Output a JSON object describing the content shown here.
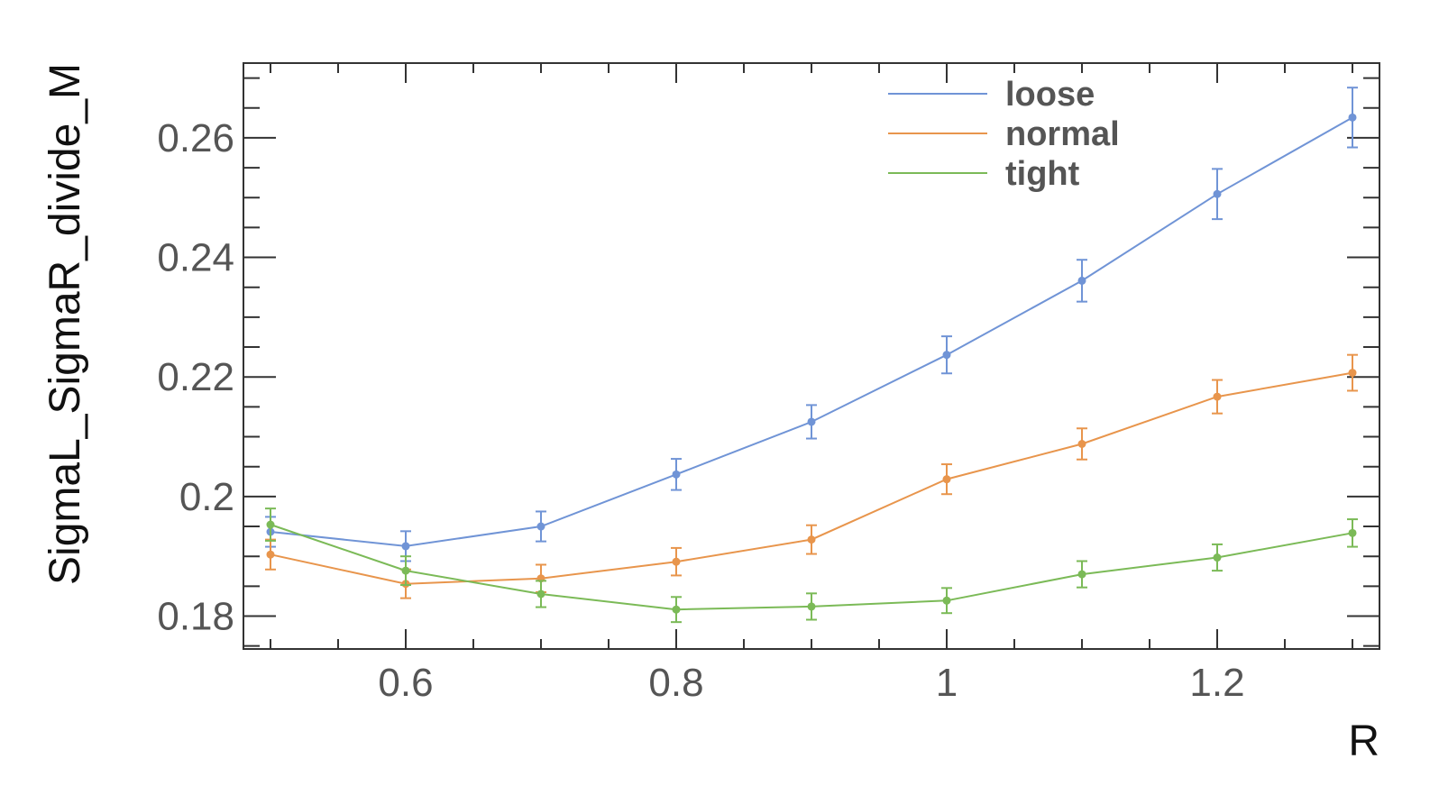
{
  "chart_data": {
    "type": "line",
    "title": "",
    "xlabel": "R",
    "ylabel": "SigmaL_SigmaR_divide_M",
    "xlim": [
      0.48,
      1.32
    ],
    "ylim": [
      0.1745,
      0.2725
    ],
    "x_ticks": [
      0.6,
      0.8,
      1.0,
      1.2
    ],
    "x_tick_labels": [
      "0.6",
      "0.8",
      "1",
      "1.2"
    ],
    "y_ticks": [
      0.18,
      0.2,
      0.22,
      0.24,
      0.26
    ],
    "y_tick_labels": [
      "0.18",
      "0.2",
      "0.22",
      "0.24",
      "0.26"
    ],
    "grid": false,
    "legend_position": "top-right",
    "x": [
      0.5,
      0.6,
      0.7,
      0.8,
      0.9,
      1.0,
      1.1,
      1.2,
      1.3
    ],
    "series": [
      {
        "name": "loose",
        "color": "#7094d6",
        "values": [
          0.1941,
          0.1917,
          0.195,
          0.2037,
          0.2125,
          0.2237,
          0.2361,
          0.2506,
          0.2634
        ],
        "errors": [
          0.0025,
          0.0025,
          0.0025,
          0.0026,
          0.0028,
          0.0031,
          0.0035,
          0.0042,
          0.005
        ]
      },
      {
        "name": "normal",
        "color": "#e8954c",
        "values": [
          0.1903,
          0.1854,
          0.1863,
          0.1891,
          0.1928,
          0.2029,
          0.2088,
          0.2167,
          0.2207
        ],
        "errors": [
          0.0025,
          0.0024,
          0.0023,
          0.0023,
          0.0024,
          0.0025,
          0.0026,
          0.0028,
          0.003
        ]
      },
      {
        "name": "tight",
        "color": "#7bba57",
        "values": [
          0.1953,
          0.1876,
          0.1837,
          0.1811,
          0.1816,
          0.1826,
          0.187,
          0.1898,
          0.1939
        ],
        "errors": [
          0.0027,
          0.0024,
          0.0022,
          0.0021,
          0.0022,
          0.0021,
          0.0022,
          0.0022,
          0.0023
        ]
      }
    ]
  }
}
